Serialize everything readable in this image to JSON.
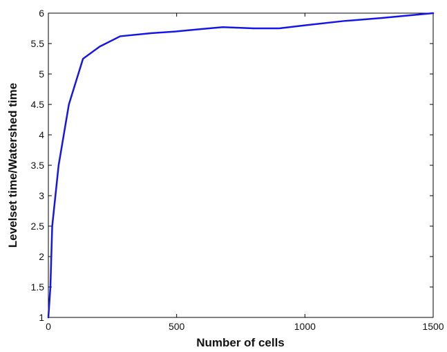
{
  "chart_data": {
    "type": "line",
    "title": "",
    "xlabel": "Number of cells",
    "ylabel": "Levelset time/Watershed time",
    "xlim": [
      0,
      1500
    ],
    "ylim": [
      1,
      6
    ],
    "xticks": [
      0,
      500,
      1000,
      1500
    ],
    "yticks": [
      1,
      1.5,
      2,
      2.5,
      3,
      3.5,
      4,
      4.5,
      5,
      5.5,
      6
    ],
    "grid": false,
    "legend": "none",
    "series": [
      {
        "color": "#1515e6",
        "x": [
          0,
          8,
          15,
          40,
          80,
          135,
          200,
          280,
          400,
          500,
          600,
          680,
          800,
          900,
          1000,
          1150,
          1300,
          1450,
          1500
        ],
        "y": [
          1,
          1.5,
          2.5,
          3.5,
          4.5,
          5.25,
          5.45,
          5.62,
          5.67,
          5.7,
          5.74,
          5.77,
          5.75,
          5.75,
          5.8,
          5.87,
          5.92,
          5.98,
          6
        ]
      }
    ]
  }
}
